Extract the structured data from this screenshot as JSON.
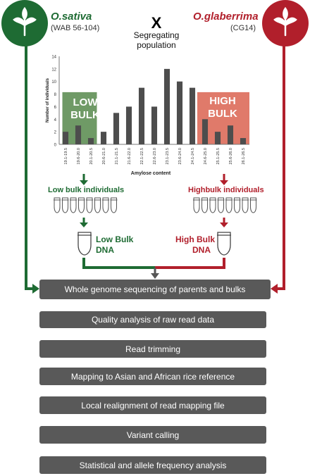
{
  "parents": {
    "left": {
      "name": "O.sativa",
      "code": "(WAB 56-104)",
      "color": "#1e6b33"
    },
    "right": {
      "name": "O.glaberrima",
      "code": "(CG14)",
      "color": "#b11f2b"
    }
  },
  "cross_symbol": "X",
  "segregating_label": "Segregating population",
  "chart_data": {
    "type": "bar",
    "title": "",
    "xlabel": "Amylose content",
    "ylabel": "Number of individuals",
    "ylim": [
      0,
      14
    ],
    "yticks": [
      0,
      2,
      4,
      6,
      8,
      10,
      12,
      14
    ],
    "categories": [
      "19.1-19.5",
      "19.6-20.0",
      "20.1-20.5",
      "20.6-21.0",
      "21.1-21.5",
      "21.6-22.0",
      "22.1-22.5",
      "22.6-23.0",
      "23.1-23.5",
      "23.6-24.0",
      "24.1-24.5",
      "24.6-25.0",
      "25.1-25.5",
      "25.6-26.0",
      "26.1-26.5"
    ],
    "values": [
      2,
      3,
      1,
      2,
      5,
      6,
      9,
      6,
      12,
      10,
      9,
      4,
      2,
      3,
      1
    ],
    "bar_color": "#4d4d4d",
    "grid": false
  },
  "low_bulk": {
    "title_line1": "LOW",
    "title_line2": "BULK",
    "color": "#6f9a66",
    "individuals_label": "Low bulk individuals",
    "dna_line1": "Low Bulk",
    "dna_line2": "DNA",
    "tube_count": 8
  },
  "high_bulk": {
    "title_line1": "HIGH",
    "title_line2": "BULK",
    "color": "#e07a6a",
    "individuals_label": "Highbulk individuals",
    "dna_line1": "High Bulk",
    "dna_line2": "DNA",
    "tube_count": 8
  },
  "pipeline": [
    "Whole genome sequencing of parents and bulks",
    "Quality analysis of raw read data",
    "Read trimming",
    "Mapping to Asian and African rice reference",
    "Local realignment of read mapping file",
    "Variant calling",
    "Statistical and allele frequency analysis"
  ]
}
